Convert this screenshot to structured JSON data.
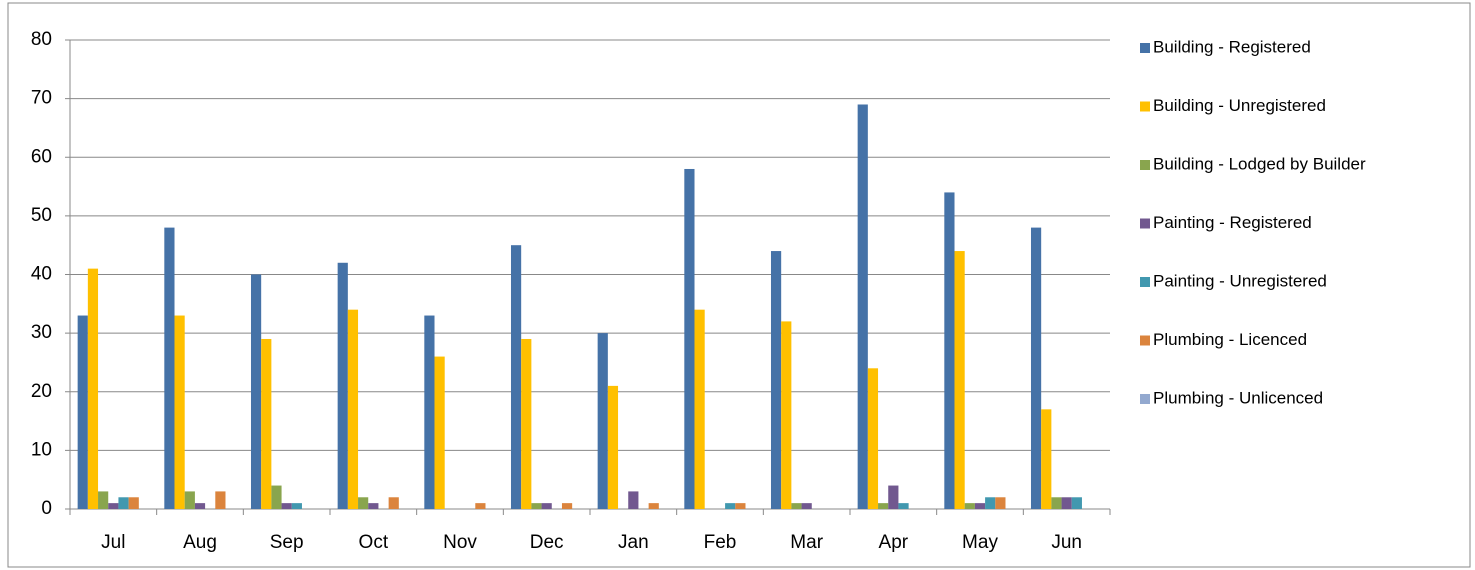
{
  "chart_data": {
    "type": "bar",
    "categories": [
      "Jul",
      "Aug",
      "Sep",
      "Oct",
      "Nov",
      "Dec",
      "Jan",
      "Feb",
      "Mar",
      "Apr",
      "May",
      "Jun"
    ],
    "series": [
      {
        "name": "Building - Registered",
        "color": "#4572a7",
        "values": [
          33,
          48,
          40,
          42,
          33,
          45,
          30,
          58,
          44,
          69,
          54,
          48
        ]
      },
      {
        "name": "Building - Unregistered",
        "color": "#ffc000",
        "values": [
          41,
          33,
          29,
          34,
          26,
          29,
          21,
          34,
          32,
          24,
          44,
          17
        ]
      },
      {
        "name": "Building - Lodged by Builder",
        "color": "#89a54e",
        "values": [
          3,
          3,
          4,
          2,
          0,
          1,
          0,
          0,
          1,
          1,
          1,
          2
        ]
      },
      {
        "name": "Painting - Registered",
        "color": "#71588f",
        "values": [
          1,
          1,
          1,
          1,
          0,
          1,
          3,
          0,
          1,
          4,
          1,
          2
        ]
      },
      {
        "name": "Painting - Unregistered",
        "color": "#4198af",
        "values": [
          2,
          0,
          1,
          0,
          0,
          0,
          0,
          1,
          0,
          1,
          2,
          2
        ]
      },
      {
        "name": "Plumbing - Licenced",
        "color": "#db843d",
        "values": [
          2,
          3,
          0,
          2,
          1,
          1,
          1,
          1,
          0,
          0,
          2,
          0
        ]
      },
      {
        "name": "Plumbing - Unlicenced",
        "color": "#93a9cf",
        "values": [
          0,
          0,
          0,
          0,
          0,
          0,
          0,
          0,
          0,
          0,
          0,
          0
        ]
      }
    ],
    "ylim": [
      0,
      80
    ],
    "yticks": [
      0,
      10,
      20,
      30,
      40,
      50,
      60,
      70,
      80
    ],
    "grid": true,
    "legend": "right"
  }
}
